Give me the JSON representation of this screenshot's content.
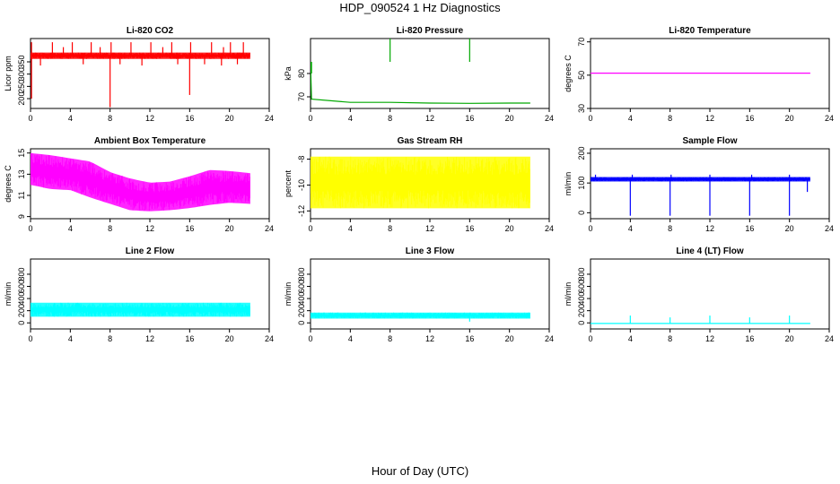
{
  "title": "HDP_090524  1 Hz Diagnostics",
  "xlabel": "Hour of Day (UTC)",
  "colors": {
    "red": "#ff0000",
    "green": "#00a800",
    "magenta": "#ff00ff",
    "yellow": "#ffff00",
    "blue": "#0000ff",
    "cyan": "#00ffff"
  },
  "chart_data": [
    {
      "type": "line",
      "title": "Li-820 CO2",
      "ylabel": "Licor ppm",
      "color": "#ff0000",
      "xlim": [
        0,
        24
      ],
      "xticks": [
        0,
        4,
        8,
        12,
        16,
        20,
        24
      ],
      "ylim": [
        160,
        445
      ],
      "yticks": [
        200,
        250,
        300,
        350
      ],
      "xrange": [
        0,
        22.1
      ],
      "series": [
        {
          "name": "CO2",
          "style": "band",
          "values": [
            {
              "lo": 362,
              "hi": 388
            }
          ],
          "spikes_up": [
            {
              "x": 0.1,
              "y": 430
            },
            {
              "x": 2.2,
              "y": 430
            },
            {
              "x": 4.2,
              "y": 430
            },
            {
              "x": 6.1,
              "y": 430
            },
            {
              "x": 8.1,
              "y": 430
            },
            {
              "x": 10.1,
              "y": 430
            },
            {
              "x": 12.1,
              "y": 430
            },
            {
              "x": 14.2,
              "y": 430
            },
            {
              "x": 16.1,
              "y": 430
            },
            {
              "x": 18.2,
              "y": 430
            },
            {
              "x": 20.1,
              "y": 430
            },
            {
              "x": 21.4,
              "y": 430
            },
            {
              "x": 3.3,
              "y": 410
            },
            {
              "x": 7.0,
              "y": 410
            },
            {
              "x": 13.3,
              "y": 410
            },
            {
              "x": 19.4,
              "y": 410
            }
          ],
          "spikes_down": [
            {
              "x": 0.1,
              "y": 200
            },
            {
              "x": 8.0,
              "y": 165
            },
            {
              "x": 16.0,
              "y": 215
            },
            {
              "x": 1.0,
              "y": 335
            },
            {
              "x": 5.3,
              "y": 340
            },
            {
              "x": 9.0,
              "y": 340
            },
            {
              "x": 11.2,
              "y": 335
            },
            {
              "x": 14.8,
              "y": 340
            },
            {
              "x": 17.5,
              "y": 340
            },
            {
              "x": 19.2,
              "y": 335
            },
            {
              "x": 20.8,
              "y": 340
            }
          ]
        }
      ]
    },
    {
      "type": "line",
      "title": "Li-820 Pressure",
      "ylabel": "kPa",
      "color": "#00a800",
      "xlim": [
        0,
        24
      ],
      "xticks": [
        0,
        4,
        8,
        12,
        16,
        20,
        24
      ],
      "ylim": [
        65,
        95
      ],
      "yticks": [
        70,
        80
      ],
      "xrange": [
        0,
        22.1
      ],
      "series": [
        {
          "name": "Pressure",
          "style": "line",
          "values": [
            {
              "x": 0,
              "y": 85
            },
            {
              "x": 0.1,
              "y": 69
            },
            {
              "x": 4,
              "y": 67.6
            },
            {
              "x": 8,
              "y": 67.6
            },
            {
              "x": 12,
              "y": 67.3
            },
            {
              "x": 16,
              "y": 67.2
            },
            {
              "x": 20,
              "y": 67.3
            },
            {
              "x": 22.1,
              "y": 67.3
            }
          ],
          "spikes_up": [
            {
              "x": 0.1,
              "y": 80
            },
            {
              "x": 8.0,
              "y": 95
            },
            {
              "x": 16.0,
              "y": 95
            }
          ],
          "spikes_down": []
        }
      ]
    },
    {
      "type": "line",
      "title": "Li-820 Temperature",
      "ylabel": "degrees C",
      "color": "#ff00ff",
      "xlim": [
        0,
        24
      ],
      "xticks": [
        0,
        4,
        8,
        12,
        16,
        20,
        24
      ],
      "ylim": [
        30,
        72
      ],
      "yticks": [
        30,
        50,
        70
      ],
      "xrange": [
        0,
        22.1
      ],
      "series": [
        {
          "name": "Temperature",
          "style": "line",
          "values": [
            {
              "x": 0,
              "y": 51.2
            },
            {
              "x": 22.1,
              "y": 51.2
            }
          ],
          "spikes_up": [],
          "spikes_down": []
        }
      ]
    },
    {
      "type": "line",
      "title": "Ambient Box Temperature",
      "ylabel": "degrees C",
      "color": "#ff00ff",
      "xlim": [
        0,
        24
      ],
      "xticks": [
        0,
        4,
        8,
        12,
        16,
        20,
        24
      ],
      "ylim": [
        8.8,
        15.4
      ],
      "yticks": [
        9,
        11,
        13,
        15
      ],
      "xrange": [
        0,
        22.1
      ],
      "series": [
        {
          "name": "Box Temp",
          "style": "band",
          "values": [
            {
              "x": 0,
              "lo": 12.0,
              "hi": 15.0
            },
            {
              "x": 2,
              "lo": 11.6,
              "hi": 14.8
            },
            {
              "x": 4,
              "lo": 11.5,
              "hi": 14.5
            },
            {
              "x": 6,
              "lo": 10.8,
              "hi": 14.2
            },
            {
              "x": 8,
              "lo": 10.2,
              "hi": 13.2
            },
            {
              "x": 10,
              "lo": 9.6,
              "hi": 12.6
            },
            {
              "x": 12,
              "lo": 9.5,
              "hi": 12.2
            },
            {
              "x": 14,
              "lo": 9.6,
              "hi": 12.3
            },
            {
              "x": 16,
              "lo": 9.8,
              "hi": 12.8
            },
            {
              "x": 18,
              "lo": 10.1,
              "hi": 13.4
            },
            {
              "x": 20,
              "lo": 10.3,
              "hi": 13.3
            },
            {
              "x": 22.1,
              "lo": 10.2,
              "hi": 13.1
            }
          ],
          "spikes_up": [],
          "spikes_down": []
        }
      ]
    },
    {
      "type": "line",
      "title": "Gas Stream RH",
      "ylabel": "percent",
      "color": "#ffff00",
      "xlim": [
        0,
        24
      ],
      "xticks": [
        0,
        4,
        8,
        12,
        16,
        20,
        24
      ],
      "ylim": [
        -12.6,
        -7.2
      ],
      "yticks": [
        -12,
        -10,
        -8
      ],
      "xrange": [
        0,
        22.1
      ],
      "series": [
        {
          "name": "RH",
          "style": "band",
          "values": [
            {
              "x": 0,
              "lo": -11.8,
              "hi": -7.8
            },
            {
              "x": 22.1,
              "lo": -11.8,
              "hi": -7.8
            }
          ],
          "spikes_up": [],
          "spikes_down": []
        }
      ]
    },
    {
      "type": "line",
      "title": "Sample Flow",
      "ylabel": "ml/min",
      "color": "#0000ff",
      "xlim": [
        0,
        24
      ],
      "xticks": [
        0,
        4,
        8,
        12,
        16,
        20,
        24
      ],
      "ylim": [
        -20,
        215
      ],
      "yticks": [
        0,
        100,
        200
      ],
      "xrange": [
        0,
        22.1
      ],
      "series": [
        {
          "name": "Sample Flow",
          "style": "band",
          "values": [
            {
              "lo": 105,
              "hi": 120
            }
          ],
          "spikes_up": [
            {
              "x": 0.5,
              "y": 128
            },
            {
              "x": 4.2,
              "y": 128
            },
            {
              "x": 8.1,
              "y": 128
            },
            {
              "x": 12.0,
              "y": 128
            },
            {
              "x": 16.2,
              "y": 128
            },
            {
              "x": 20.0,
              "y": 128
            }
          ],
          "spikes_down": [
            {
              "x": 4.0,
              "y": -10
            },
            {
              "x": 8.0,
              "y": -10
            },
            {
              "x": 12.0,
              "y": -10
            },
            {
              "x": 16.0,
              "y": -10
            },
            {
              "x": 20.0,
              "y": -10
            },
            {
              "x": 21.8,
              "y": 70
            }
          ]
        }
      ]
    },
    {
      "type": "line",
      "title": "Line 2 Flow",
      "ylabel": "ml/min",
      "color": "#00ffff",
      "xlim": [
        0,
        24
      ],
      "xticks": [
        0,
        4,
        8,
        12,
        16,
        20,
        24
      ],
      "ylim": [
        -100,
        1050
      ],
      "yticks": [
        0,
        200,
        400,
        600,
        800
      ],
      "xrange": [
        0,
        22.1
      ],
      "series": [
        {
          "name": "Line 2",
          "style": "band",
          "values": [
            {
              "lo": 100,
              "hi": 330
            }
          ],
          "spikes_up": [],
          "spikes_down": []
        }
      ]
    },
    {
      "type": "line",
      "title": "Line 3 Flow",
      "ylabel": "ml/min",
      "color": "#00ffff",
      "xlim": [
        0,
        24
      ],
      "xticks": [
        0,
        4,
        8,
        12,
        16,
        20,
        24
      ],
      "ylim": [
        -100,
        1050
      ],
      "yticks": [
        0,
        200,
        400,
        600,
        800
      ],
      "xrange": [
        0,
        22.1
      ],
      "series": [
        {
          "name": "Line 3",
          "style": "band",
          "values": [
            {
              "lo": 70,
              "hi": 170
            }
          ],
          "spikes_up": [],
          "spikes_down": [
            {
              "x": 16.0,
              "y": 20
            }
          ]
        }
      ]
    },
    {
      "type": "line",
      "title": "Line 4 (LT) Flow",
      "ylabel": "ml/min",
      "color": "#00ffff",
      "xlim": [
        0,
        24
      ],
      "xticks": [
        0,
        4,
        8,
        12,
        16,
        20,
        24
      ],
      "ylim": [
        -100,
        1050
      ],
      "yticks": [
        0,
        200,
        400,
        600,
        800
      ],
      "xrange": [
        0,
        22.1
      ],
      "series": [
        {
          "name": "Line 4",
          "style": "line",
          "values": [
            {
              "x": 0,
              "y": -10
            },
            {
              "x": 22.1,
              "y": -10
            }
          ],
          "spikes_up": [
            {
              "x": 4.0,
              "y": 120
            },
            {
              "x": 8.0,
              "y": 90
            },
            {
              "x": 12.0,
              "y": 120
            },
            {
              "x": 16.0,
              "y": 90
            },
            {
              "x": 20.0,
              "y": 120
            }
          ],
          "spikes_down": []
        }
      ]
    }
  ]
}
